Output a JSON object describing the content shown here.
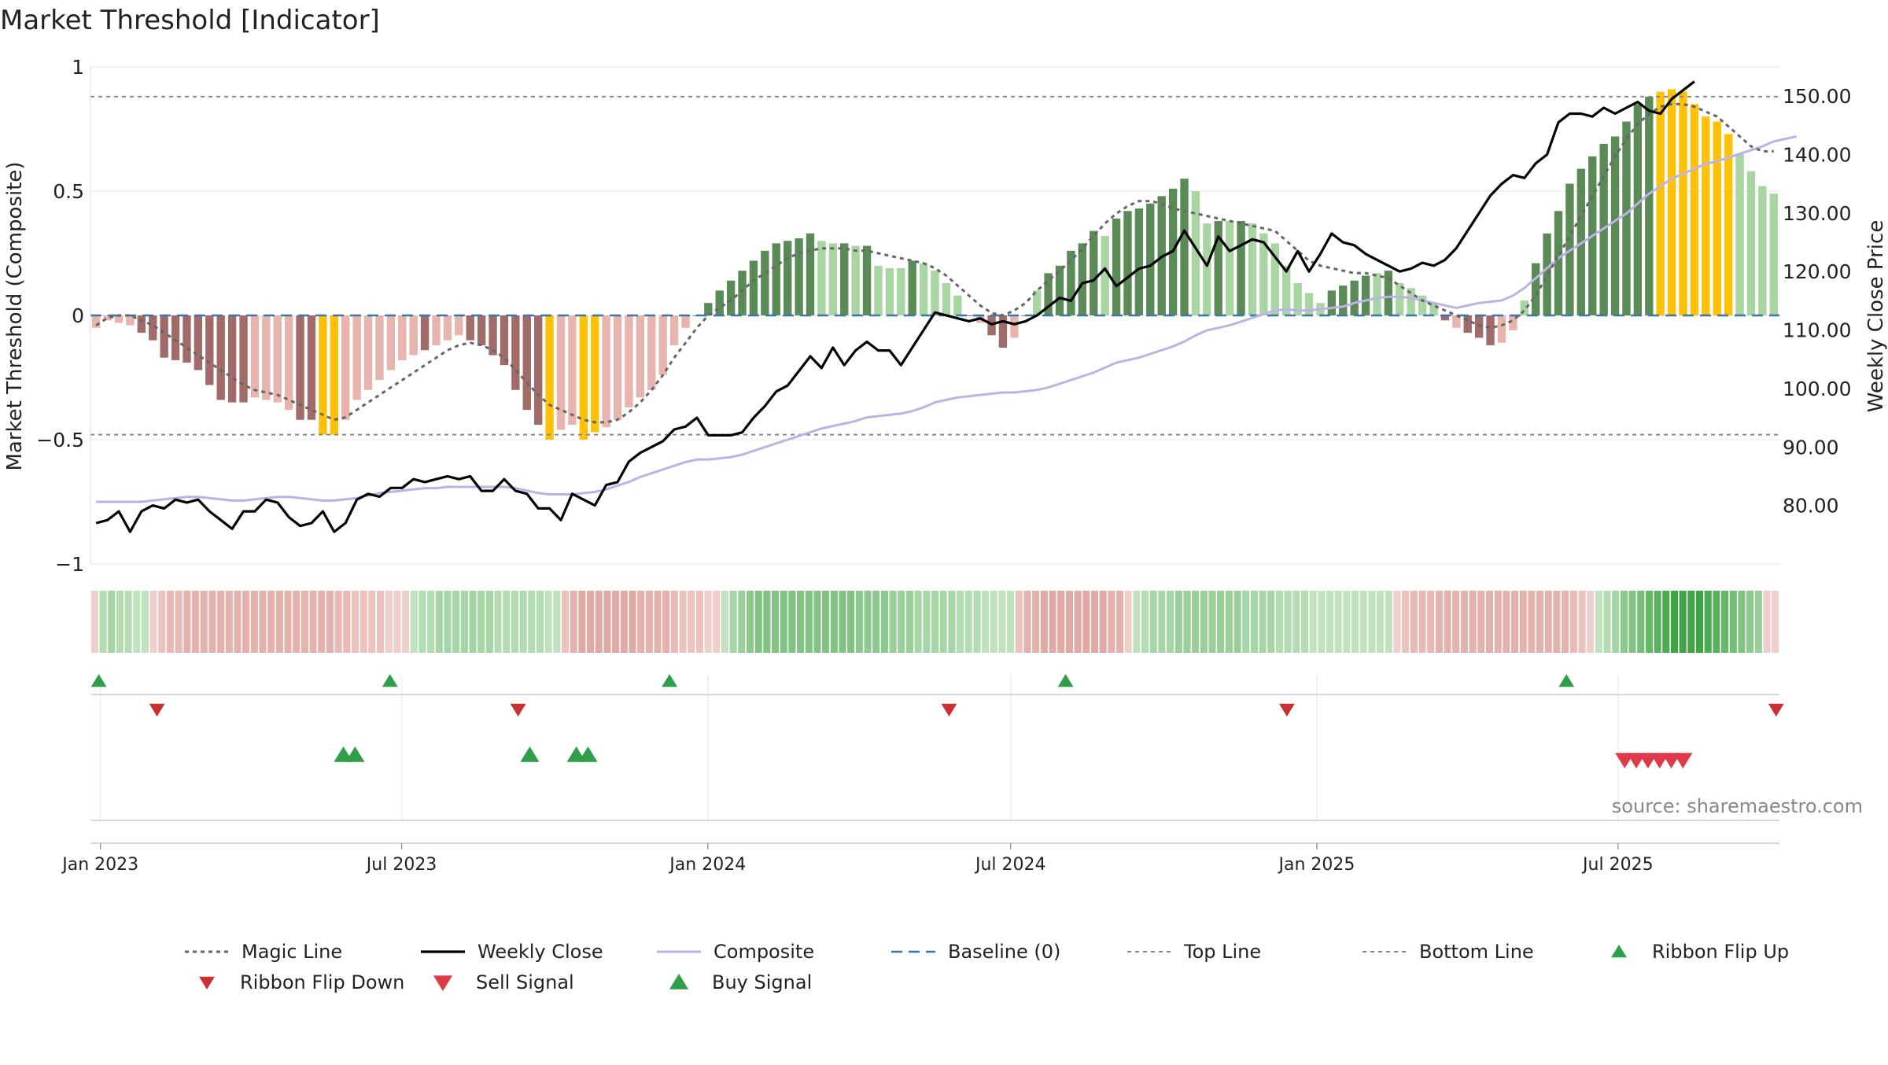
{
  "title": "Market Threshold [Indicator]",
  "source": "source: sharemaestro.com",
  "chart_data": {
    "type": "bar",
    "title": "Market Threshold [Indicator]",
    "ylabel_left": "Market Threshold (Composite)",
    "ylabel_right": "Weekly Close Price",
    "ylim_left": [
      -1,
      1
    ],
    "yticks_left": [
      "1",
      "0.5",
      "0",
      "−0.5",
      "−1"
    ],
    "yticks_left_values": [
      1,
      0.5,
      0,
      -0.5,
      -1
    ],
    "ylim_right": [
      70,
      155
    ],
    "yticks_right": [
      "150.00",
      "140.00",
      "130.00",
      "120.00",
      "110.00",
      "100.00",
      "90.00",
      "80.00"
    ],
    "yticks_right_values": [
      150,
      140,
      130,
      120,
      110,
      100,
      90,
      80
    ],
    "x_start": "2022-12-26",
    "x_end": "2025-10-06",
    "xticks": [
      "Jan 2023",
      "Jul 2023",
      "Jan 2024",
      "Jul 2024",
      "Jan 2025",
      "Jul 2025"
    ],
    "xticks_dates": [
      "2023-01-01",
      "2023-07-01",
      "2024-01-01",
      "2024-07-01",
      "2025-01-01",
      "2025-07-01"
    ],
    "top_line": 0.88,
    "bottom_line": -0.48,
    "baseline": 0,
    "composite_bars": [
      -0.05,
      -0.02,
      -0.03,
      -0.04,
      -0.07,
      -0.1,
      -0.17,
      -0.18,
      -0.19,
      -0.22,
      -0.28,
      -0.34,
      -0.35,
      -0.35,
      -0.33,
      -0.34,
      -0.35,
      -0.38,
      -0.42,
      -0.42,
      -0.48,
      -0.48,
      -0.42,
      -0.34,
      -0.3,
      -0.26,
      -0.22,
      -0.18,
      -0.16,
      -0.14,
      -0.12,
      -0.1,
      -0.08,
      -0.1,
      -0.12,
      -0.16,
      -0.2,
      -0.3,
      -0.38,
      -0.44,
      -0.5,
      -0.46,
      -0.44,
      -0.5,
      -0.47,
      -0.45,
      -0.42,
      -0.37,
      -0.33,
      -0.3,
      -0.24,
      -0.12,
      -0.05,
      0.0,
      0.05,
      0.1,
      0.14,
      0.18,
      0.22,
      0.26,
      0.29,
      0.3,
      0.31,
      0.33,
      0.3,
      0.29,
      0.29,
      0.28,
      0.28,
      0.2,
      0.19,
      0.19,
      0.22,
      0.21,
      0.18,
      0.13,
      0.08,
      0.0,
      -0.03,
      -0.08,
      -0.13,
      -0.09,
      0.0,
      0.1,
      0.17,
      0.2,
      0.26,
      0.29,
      0.34,
      0.32,
      0.39,
      0.42,
      0.43,
      0.45,
      0.48,
      0.51,
      0.55,
      0.5,
      0.37,
      0.38,
      0.38,
      0.38,
      0.37,
      0.33,
      0.29,
      0.2,
      0.13,
      0.09,
      0.05,
      0.1,
      0.12,
      0.14,
      0.16,
      0.17,
      0.18,
      0.13,
      0.11,
      0.08,
      0.05,
      -0.02,
      -0.05,
      -0.07,
      -0.09,
      -0.12,
      -0.11,
      -0.06,
      0.06,
      0.21,
      0.33,
      0.42,
      0.53,
      0.59,
      0.64,
      0.69,
      0.72,
      0.78,
      0.85,
      0.88,
      0.9,
      0.91,
      0.9,
      0.85,
      0.8,
      0.78,
      0.73,
      0.65,
      0.58,
      0.52,
      0.49
    ],
    "bar_colors": [
      "#e8b4ae",
      "#e8b4ae",
      "#e8b4ae",
      "#e8b4ae",
      "#a06b68",
      "#a06b68",
      "#a06b68",
      "#a06b68",
      "#a06b68",
      "#a06b68",
      "#a06b68",
      "#a06b68",
      "#a06b68",
      "#a06b68",
      "#e8b4ae",
      "#e8b4ae",
      "#e8b4ae",
      "#e8b4ae",
      "#a06b68",
      "#a06b68",
      "#ffc107",
      "#ffc107",
      "#e8b4ae",
      "#e8b4ae",
      "#e8b4ae",
      "#e8b4ae",
      "#e8b4ae",
      "#e8b4ae",
      "#e8b4ae",
      "#a06b68",
      "#e8b4ae",
      "#e8b4ae",
      "#e8b4ae",
      "#a06b68",
      "#a06b68",
      "#a06b68",
      "#a06b68",
      "#a06b68",
      "#a06b68",
      "#a06b68",
      "#ffc107",
      "#e8b4ae",
      "#e8b4ae",
      "#ffc107",
      "#ffc107",
      "#e8b4ae",
      "#e8b4ae",
      "#e8b4ae",
      "#e8b4ae",
      "#e8b4ae",
      "#e8b4ae",
      "#e8b4ae",
      "#e8b4ae",
      "#5a8a56",
      "#5a8a56",
      "#5a8a56",
      "#5a8a56",
      "#5a8a56",
      "#5a8a56",
      "#5a8a56",
      "#5a8a56",
      "#5a8a56",
      "#5a8a56",
      "#5a8a56",
      "#a9d5a2",
      "#a9d5a2",
      "#5a8a56",
      "#a9d5a2",
      "#5a8a56",
      "#a9d5a2",
      "#a9d5a2",
      "#a9d5a2",
      "#5a8a56",
      "#a9d5a2",
      "#a9d5a2",
      "#a9d5a2",
      "#a9d5a2",
      "#a06b68",
      "#e8b4ae",
      "#a06b68",
      "#a06b68",
      "#e8b4ae",
      "#5a8a56",
      "#a9d5a2",
      "#5a8a56",
      "#5a8a56",
      "#5a8a56",
      "#5a8a56",
      "#5a8a56",
      "#a9d5a2",
      "#5a8a56",
      "#5a8a56",
      "#5a8a56",
      "#5a8a56",
      "#5a8a56",
      "#5a8a56",
      "#5a8a56",
      "#a9d5a2",
      "#a9d5a2",
      "#5a8a56",
      "#a9d5a2",
      "#5a8a56",
      "#a9d5a2",
      "#a9d5a2",
      "#a9d5a2",
      "#a9d5a2",
      "#a9d5a2",
      "#a9d5a2",
      "#a9d5a2",
      "#5a8a56",
      "#5a8a56",
      "#5a8a56",
      "#5a8a56",
      "#a9d5a2",
      "#5a8a56",
      "#a9d5a2",
      "#a9d5a2",
      "#a9d5a2",
      "#a9d5a2",
      "#a06b68",
      "#e8b4ae",
      "#a06b68",
      "#a06b68",
      "#a06b68",
      "#e8b4ae",
      "#e8b4ae",
      "#a9d5a2",
      "#5a8a56",
      "#5a8a56",
      "#5a8a56",
      "#5a8a56",
      "#5a8a56",
      "#5a8a56",
      "#5a8a56",
      "#5a8a56",
      "#5a8a56",
      "#5a8a56",
      "#5a8a56",
      "#ffc107",
      "#ffc107",
      "#ffc107",
      "#ffc107",
      "#ffc107",
      "#ffc107",
      "#ffc107",
      "#a9d5a2",
      "#a9d5a2",
      "#a9d5a2",
      "#a9d5a2",
      "#a9d5a2",
      "#a9d5a2",
      "#a9d5a2"
    ],
    "weekly_close": [
      77,
      77.5,
      79,
      75.5,
      79,
      80,
      79.5,
      81,
      80.5,
      81,
      79,
      77.5,
      76,
      79,
      79,
      81,
      80.5,
      78,
      76.5,
      77,
      79,
      75.5,
      77,
      81,
      82,
      81.5,
      83,
      83,
      84.5,
      84,
      84.5,
      85,
      84.5,
      85,
      82.5,
      82.5,
      84.5,
      82.5,
      82,
      79.5,
      79.5,
      77.5,
      82,
      81,
      80,
      83.5,
      84,
      87.5,
      89,
      90,
      91,
      93,
      93.5,
      95,
      92,
      92,
      92,
      92.5,
      95,
      97,
      99.5,
      100.5,
      103,
      105.5,
      103.5,
      107,
      104,
      106.5,
      108,
      106.5,
      106.5,
      104,
      107,
      110,
      113,
      112.5,
      112,
      111.5,
      112,
      111,
      111.5,
      111,
      111.5,
      112.5,
      114,
      115.5,
      115,
      118,
      118.5,
      120.5,
      117.5,
      119,
      120.5,
      121,
      122.5,
      123.5,
      127,
      124,
      121,
      126,
      123.5,
      124.5,
      125.5,
      125,
      122.5,
      120,
      123.5,
      120,
      123,
      126.5,
      125,
      124.5,
      123,
      122,
      121,
      120,
      120.5,
      121.5,
      121,
      122,
      124,
      127,
      130,
      133,
      135,
      136.5,
      136,
      138.5,
      140,
      145.5,
      147,
      147,
      146.5,
      148,
      147,
      148,
      149,
      147.5,
      147,
      149.5,
      151,
      152.5
    ],
    "composite_line": [
      -0.75,
      -0.75,
      -0.75,
      -0.75,
      -0.75,
      -0.745,
      -0.74,
      -0.735,
      -0.73,
      -0.73,
      -0.735,
      -0.74,
      -0.745,
      -0.745,
      -0.74,
      -0.735,
      -0.73,
      -0.73,
      -0.735,
      -0.74,
      -0.745,
      -0.745,
      -0.74,
      -0.735,
      -0.725,
      -0.715,
      -0.71,
      -0.705,
      -0.7,
      -0.695,
      -0.695,
      -0.69,
      -0.69,
      -0.69,
      -0.69,
      -0.69,
      -0.69,
      -0.695,
      -0.705,
      -0.715,
      -0.72,
      -0.72,
      -0.72,
      -0.715,
      -0.71,
      -0.7,
      -0.685,
      -0.67,
      -0.65,
      -0.635,
      -0.62,
      -0.605,
      -0.59,
      -0.58,
      -0.58,
      -0.575,
      -0.57,
      -0.56,
      -0.545,
      -0.53,
      -0.515,
      -0.5,
      -0.485,
      -0.47,
      -0.455,
      -0.445,
      -0.435,
      -0.425,
      -0.41,
      -0.405,
      -0.4,
      -0.395,
      -0.385,
      -0.37,
      -0.35,
      -0.34,
      -0.33,
      -0.325,
      -0.32,
      -0.315,
      -0.31,
      -0.31,
      -0.305,
      -0.3,
      -0.29,
      -0.275,
      -0.26,
      -0.245,
      -0.23,
      -0.21,
      -0.19,
      -0.18,
      -0.17,
      -0.155,
      -0.14,
      -0.125,
      -0.105,
      -0.08,
      -0.06,
      -0.05,
      -0.04,
      -0.025,
      -0.01,
      0.005,
      0.02,
      0.025,
      0.02,
      0.02,
      0.025,
      0.03,
      0.035,
      0.05,
      0.06,
      0.07,
      0.075,
      0.075,
      0.07,
      0.06,
      0.05,
      0.04,
      0.03,
      0.04,
      0.05,
      0.055,
      0.06,
      0.08,
      0.11,
      0.15,
      0.19,
      0.23,
      0.26,
      0.29,
      0.32,
      0.35,
      0.38,
      0.41,
      0.45,
      0.49,
      0.52,
      0.55,
      0.57,
      0.59,
      0.61,
      0.62,
      0.635,
      0.65,
      0.665,
      0.68,
      0.7,
      0.71,
      0.72
    ],
    "magic_line": [
      -0.04,
      -0.01,
      0.0,
      0.0,
      -0.02,
      -0.04,
      -0.07,
      -0.1,
      -0.13,
      -0.16,
      -0.19,
      -0.22,
      -0.25,
      -0.28,
      -0.3,
      -0.31,
      -0.32,
      -0.34,
      -0.36,
      -0.38,
      -0.4,
      -0.42,
      -0.41,
      -0.38,
      -0.35,
      -0.32,
      -0.29,
      -0.26,
      -0.23,
      -0.2,
      -0.17,
      -0.14,
      -0.12,
      -0.11,
      -0.12,
      -0.14,
      -0.17,
      -0.22,
      -0.27,
      -0.32,
      -0.36,
      -0.38,
      -0.4,
      -0.42,
      -0.43,
      -0.43,
      -0.42,
      -0.39,
      -0.35,
      -0.3,
      -0.24,
      -0.17,
      -0.11,
      -0.05,
      0.0,
      0.03,
      0.06,
      0.1,
      0.14,
      0.17,
      0.2,
      0.23,
      0.25,
      0.26,
      0.27,
      0.27,
      0.27,
      0.26,
      0.26,
      0.25,
      0.24,
      0.23,
      0.22,
      0.21,
      0.19,
      0.16,
      0.12,
      0.08,
      0.04,
      0.01,
      0.0,
      0.02,
      0.05,
      0.1,
      0.14,
      0.18,
      0.22,
      0.27,
      0.32,
      0.37,
      0.41,
      0.44,
      0.46,
      0.46,
      0.45,
      0.43,
      0.42,
      0.41,
      0.4,
      0.39,
      0.38,
      0.37,
      0.36,
      0.35,
      0.34,
      0.3,
      0.26,
      0.22,
      0.2,
      0.19,
      0.18,
      0.17,
      0.17,
      0.16,
      0.15,
      0.12,
      0.09,
      0.06,
      0.04,
      0.02,
      0.0,
      -0.02,
      -0.04,
      -0.05,
      -0.04,
      -0.02,
      0.02,
      0.08,
      0.16,
      0.24,
      0.32,
      0.4,
      0.48,
      0.56,
      0.64,
      0.71,
      0.77,
      0.81,
      0.84,
      0.85,
      0.85,
      0.84,
      0.82,
      0.8,
      0.76,
      0.72,
      0.68,
      0.66,
      0.66
    ],
    "ribbon_colors": [
      "#efcfcb",
      "#b4dcb2",
      "#a7d6a6",
      "#b4dcb2",
      "#b4dcb2",
      "#c1e2bf",
      "#c1e2bf",
      "#efcfcb",
      "#ebc2be",
      "#e7bab6",
      "#e7bab6",
      "#e3b2ad",
      "#e3b2ad",
      "#e3b2ad",
      "#e3b2ad",
      "#e3b2ad",
      "#e3b2ad",
      "#e3b2ad",
      "#e3b2ad",
      "#e3b2ad",
      "#e3b2ad",
      "#e3b2ad",
      "#e3b2ad",
      "#e3b2ad",
      "#e3b2ad",
      "#e3b2ad",
      "#e3b2ad",
      "#e3b2ad",
      "#e3b2ad",
      "#e7bab6",
      "#e7bab6",
      "#ebc2be",
      "#ebc2be",
      "#ebc2be",
      "#ebc2be",
      "#efcfcb",
      "#efcfcb",
      "#efcfcb",
      "#c1e2bf",
      "#b4dcb2",
      "#b4dcb2",
      "#a7d6a6",
      "#a7d6a6",
      "#a7d6a6",
      "#a7d6a6",
      "#a7d6a6",
      "#a7d6a6",
      "#a7d6a6",
      "#b4dcb2",
      "#b4dcb2",
      "#b4dcb2",
      "#b4dcb2",
      "#b4dcb2",
      "#b4dcb2",
      "#c1e2bf",
      "#c1e2bf",
      "#ebc2be",
      "#e3b2ad",
      "#dfa9a5",
      "#dfa9a5",
      "#dfa9a5",
      "#dfa9a5",
      "#dfa9a5",
      "#dfa9a5",
      "#dfa9a5",
      "#e3b2ad",
      "#e3b2ad",
      "#e3b2ad",
      "#e3b2ad",
      "#e7bab6",
      "#ebc2be",
      "#ebc2be",
      "#ebc2be",
      "#efcfcb",
      "#efcfcb",
      "#c1e2bf",
      "#a7d6a6",
      "#9acf9a",
      "#8dc98e",
      "#80c382",
      "#80c382",
      "#80c382",
      "#80c382",
      "#80c382",
      "#80c382",
      "#80c382",
      "#80c382",
      "#80c382",
      "#80c382",
      "#80c382",
      "#80c382",
      "#8dc98e",
      "#8dc98e",
      "#8dc98e",
      "#8dc98e",
      "#9acf9a",
      "#9acf9a",
      "#9acf9a",
      "#a7d6a6",
      "#a7d6a6",
      "#a7d6a6",
      "#a7d6a6",
      "#a7d6a6",
      "#b4dcb2",
      "#b4dcb2",
      "#b4dcb2",
      "#c1e2bf",
      "#c1e2bf",
      "#c1e2bf",
      "#c1e2bf",
      "#ebc2be",
      "#e3b2ad",
      "#e3b2ad",
      "#dfa9a5",
      "#dfa9a5",
      "#dfa9a5",
      "#dfa9a5",
      "#dfa9a5",
      "#dfa9a5",
      "#dfa9a5",
      "#dfa9a5",
      "#e3b2ad",
      "#e3b2ad",
      "#efcfcb",
      "#c1e2bf",
      "#b4dcb2",
      "#a7d6a6",
      "#a7d6a6",
      "#a7d6a6",
      "#9acf9a",
      "#9acf9a",
      "#9acf9a",
      "#9acf9a",
      "#9acf9a",
      "#9acf9a",
      "#9acf9a",
      "#9acf9a",
      "#a7d6a6",
      "#a7d6a6",
      "#a7d6a6",
      "#a7d6a6",
      "#b4dcb2",
      "#b4dcb2",
      "#b4dcb2",
      "#b4dcb2",
      "#c1e2bf",
      "#c1e2bf",
      "#c1e2bf",
      "#c1e2bf",
      "#c1e2bf",
      "#c1e2bf",
      "#c1e2bf",
      "#c1e2bf",
      "#c1e2bf",
      "#c1e2bf",
      "#efcfcb",
      "#ebc2be",
      "#e7bab6",
      "#e7bab6",
      "#e7bab6",
      "#e3b2ad",
      "#e3b2ad",
      "#e3b2ad",
      "#e3b2ad",
      "#e3b2ad",
      "#e3b2ad",
      "#e3b2ad",
      "#e3b2ad",
      "#e3b2ad",
      "#e3b2ad",
      "#e3b2ad",
      "#e3b2ad",
      "#e3b2ad",
      "#e3b2ad",
      "#e3b2ad",
      "#e3b2ad",
      "#e7bab6",
      "#ebc2be",
      "#efcfcb",
      "#c1e2bf",
      "#b4dcb2",
      "#a7d6a6",
      "#8dc98e",
      "#80c382",
      "#73bd76",
      "#66b76a",
      "#59b15e",
      "#4caa52",
      "#40a447",
      "#40a447",
      "#40a447",
      "#40a447",
      "#4caa52",
      "#59b15e",
      "#66b76a",
      "#73bd76",
      "#80c382",
      "#8dc98e",
      "#9acf9a",
      "#efcfcb",
      "#efcfcb"
    ],
    "ribbon_flip_up": [
      "2022-12-31",
      "2023-06-24",
      "2023-12-09",
      "2024-08-03",
      "2025-05-31"
    ],
    "ribbon_flip_down": [
      "2023-02-04",
      "2023-09-09",
      "2024-05-25",
      "2024-12-14",
      "2025-10-04"
    ],
    "buy_signal": [
      "2023-05-27",
      "2023-06-03",
      "2023-09-16",
      "2023-10-14",
      "2023-10-21"
    ],
    "sell_signal": [
      "2025-07-05",
      "2025-07-12",
      "2025-07-19",
      "2025-07-26",
      "2025-08-02",
      "2025-08-09"
    ],
    "legend": [
      "Magic Line",
      "Weekly Close",
      "Composite",
      "Baseline (0)",
      "Top Line",
      "Bottom Line",
      "Ribbon Flip Up",
      "Ribbon Flip Down",
      "Sell Signal",
      "Buy Signal"
    ],
    "legend_placement": "bottom",
    "colors": {
      "weekly_close": "#000000",
      "composite": "#bdb2e6",
      "magic_line": "#666666",
      "baseline": "#3a77a8",
      "threshold_lines": "#888888",
      "ribbon_flip_up": "#2e9e4a",
      "ribbon_flip_down": "#cc2f2f",
      "sell_signal": "#e03a4a",
      "buy_signal": "#2e9e4a",
      "grid": "#e6e6e6"
    }
  }
}
